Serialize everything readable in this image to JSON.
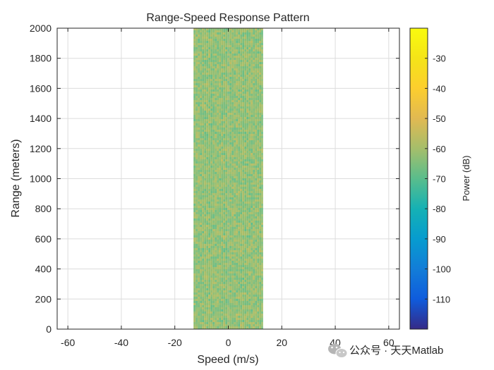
{
  "chart_data": {
    "type": "heatmap",
    "title": "Range-Speed Response Pattern",
    "xlabel": "Speed (m/s)",
    "ylabel": "Range (meters)",
    "xlim": [
      -64,
      64
    ],
    "ylim": [
      0,
      2000
    ],
    "xticks": [
      -60,
      -40,
      -20,
      0,
      20,
      40,
      60
    ],
    "yticks": [
      0,
      200,
      400,
      600,
      800,
      1000,
      1200,
      1400,
      1600,
      1800,
      2000
    ],
    "grid": true,
    "data_region": {
      "speed_min": -13,
      "speed_max": 13,
      "range_min": 0,
      "range_max": 2000
    },
    "typical_power_db": [
      -70,
      -55
    ],
    "colorbar": {
      "label": "Power (dB)",
      "limits": [
        -120,
        -20
      ],
      "ticks": [
        -30,
        -40,
        -50,
        -60,
        -70,
        -80,
        -90,
        -100,
        -110
      ],
      "colormap": "parula"
    }
  },
  "watermark": {
    "text": "公众号 · 天天Matlab",
    "icon": "wechat-icon"
  },
  "colors": {
    "grid": "#dcdcdc",
    "axis": "#262626",
    "parula_low": "#352a87",
    "parula_mid": "#25b5a6",
    "parula_high": "#f9fb0e"
  }
}
